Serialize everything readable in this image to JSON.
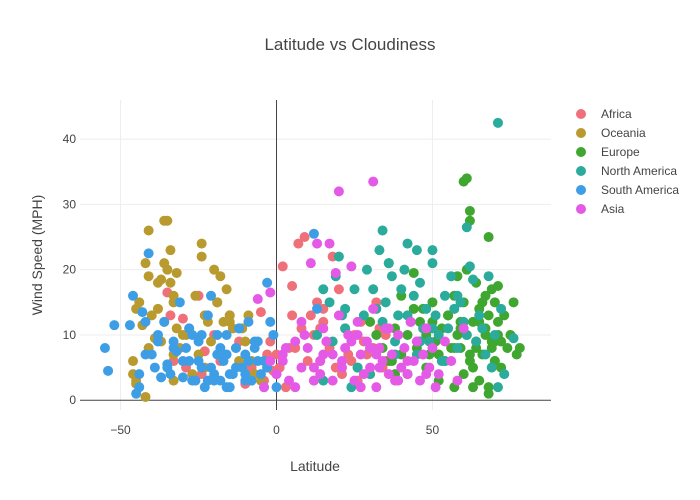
{
  "colors": {
    "africa": "#f0707a",
    "oceania": "#b89a2e",
    "europe": "#3fa630",
    "north_america": "#2aab9c",
    "south_america": "#3d9ee6",
    "asia": "#e45ae6",
    "grid": "#eeeeee",
    "zero_line": "#444444",
    "axis_line": "#444444"
  },
  "chart_data": {
    "type": "scatter",
    "title": "Latitude vs Cloudiness",
    "xlabel": "Latitude",
    "ylabel": "Wind Speed (MPH)",
    "xlim": [
      -63,
      88
    ],
    "ylim": [
      -1.5,
      46
    ],
    "x_ticks": [
      -50,
      0,
      50
    ],
    "y_ticks": [
      0,
      10,
      20,
      30,
      40
    ],
    "grid": true,
    "legend_position": "top-right",
    "series": [
      {
        "name": "Africa",
        "color": "#f0707a",
        "x": [
          -35,
          -34,
          -33,
          -30,
          -29,
          -26,
          -25,
          -24,
          -23,
          -22,
          -20,
          -18,
          -15,
          -12,
          -10,
          -8,
          -5,
          -4,
          -3,
          -2,
          -1,
          0,
          1,
          2,
          3,
          4,
          5,
          5,
          6,
          7,
          8,
          9,
          10,
          11,
          12,
          12,
          13,
          14,
          14,
          15,
          15,
          16,
          17,
          18,
          19,
          20,
          21,
          22,
          23,
          24,
          25,
          26,
          27,
          28,
          29,
          30,
          31,
          32,
          33,
          34,
          35,
          35
        ],
        "y": [
          16.5,
          13,
          6,
          12.5,
          5,
          3.5,
          16,
          4,
          7.5,
          3,
          10,
          6,
          13,
          9,
          2.5,
          5,
          13.5,
          3,
          7,
          9,
          4.5,
          7,
          5,
          20.5,
          2,
          8,
          13,
          17.5,
          8,
          24,
          11,
          25,
          6,
          13,
          3,
          10,
          15,
          11,
          6,
          12,
          14,
          9,
          8,
          22,
          5,
          17,
          4,
          11,
          7,
          6,
          10,
          3,
          12,
          9,
          7,
          4,
          8,
          15,
          11,
          5,
          10,
          6
        ]
      },
      {
        "name": "Oceania",
        "color": "#b89a2e",
        "x": [
          -46,
          -46,
          -45,
          -45,
          -44,
          -43,
          -42,
          -42,
          -41,
          -41,
          -40,
          -39,
          -38,
          -37,
          -36,
          -36,
          -35,
          -35,
          -34,
          -34,
          -33,
          -33,
          -33,
          -32,
          -32,
          -31,
          -30,
          -28,
          -27,
          -26,
          -25,
          -24,
          -24,
          -23,
          -22,
          -21,
          -20,
          -19,
          -18,
          -17,
          -16,
          -15,
          -14,
          -13,
          -12,
          -10,
          -9,
          -8,
          -7,
          -5,
          -3,
          -38,
          -36,
          -33,
          -29,
          -23,
          -19,
          -15,
          -11,
          -45,
          -41,
          -37
        ],
        "y": [
          6,
          4,
          2.5,
          3,
          15,
          11.5,
          21,
          0.5,
          19,
          26,
          13,
          9.5,
          14,
          18.5,
          12,
          27.5,
          27.5,
          20,
          18,
          23,
          16,
          7,
          3,
          19.5,
          11,
          8,
          10,
          11,
          4,
          16,
          7,
          24,
          22,
          5,
          12,
          9,
          20,
          15,
          19,
          12,
          17,
          13,
          11,
          8,
          6,
          9,
          13,
          6,
          4,
          3,
          5,
          18,
          21,
          15,
          10,
          13,
          15,
          12,
          11,
          14,
          8,
          9
        ]
      },
      {
        "name": "Europe",
        "color": "#3fa630",
        "x": [
          36,
          37,
          38,
          40,
          42,
          44,
          45,
          46,
          47,
          48,
          49,
          50,
          51,
          52,
          53,
          54,
          55,
          56,
          57,
          57,
          58,
          58,
          59,
          59,
          60,
          60,
          61,
          61,
          62,
          62,
          62,
          63,
          63,
          64,
          64,
          65,
          65,
          66,
          66,
          67,
          67,
          68,
          68,
          69,
          69,
          70,
          70,
          71,
          71,
          72,
          72,
          73,
          74,
          75,
          76,
          77,
          78,
          60,
          61,
          62,
          63,
          64,
          65,
          66,
          67,
          68,
          69,
          70,
          71,
          55,
          57,
          59,
          52,
          50,
          48,
          46,
          44,
          42,
          40,
          38,
          36,
          34,
          32,
          30,
          68,
          70
        ],
        "y": [
          21,
          6,
          4,
          16,
          4,
          19.5,
          8,
          12,
          14,
          10,
          7,
          15,
          9,
          3,
          11,
          6,
          13,
          8,
          16,
          2,
          19,
          10,
          12,
          8,
          15,
          33.5,
          34,
          20,
          29,
          27.5,
          7,
          12,
          5,
          18,
          9,
          14,
          3,
          11,
          7,
          16,
          10,
          25,
          13,
          8,
          17,
          6,
          15,
          12,
          17.5,
          9,
          5,
          13,
          8,
          10,
          15,
          7,
          8,
          4,
          10,
          6,
          2,
          8,
          12,
          15,
          11,
          1,
          9,
          6,
          10,
          13,
          8,
          11,
          7,
          12,
          5,
          9,
          14,
          10,
          7,
          11,
          6,
          8,
          10,
          12,
          2,
          9
        ]
      },
      {
        "name": "North America",
        "color": "#2aab9c",
        "x": [
          13,
          15,
          17,
          19,
          20,
          21,
          22,
          24,
          25,
          26,
          28,
          29,
          30,
          31,
          32,
          33,
          34,
          35,
          36,
          37,
          38,
          39,
          40,
          41,
          42,
          43,
          44,
          45,
          45,
          46,
          47,
          48,
          49,
          50,
          50,
          51,
          52,
          53,
          54,
          55,
          56,
          57,
          58,
          59,
          60,
          61,
          62,
          63,
          64,
          65,
          66,
          67,
          68,
          69,
          70,
          71,
          72,
          73,
          15,
          18,
          22,
          26,
          30,
          34,
          38,
          42,
          46,
          50,
          54,
          58,
          61,
          71,
          76
        ],
        "y": [
          10,
          17,
          15,
          19,
          22,
          13,
          11,
          2,
          17,
          5,
          13,
          20,
          4,
          17,
          14,
          23,
          26,
          15,
          21,
          19,
          9,
          13,
          17,
          20,
          24,
          12,
          16,
          23,
          7,
          18,
          11,
          14,
          9,
          23,
          21,
          13,
          10,
          6,
          16,
          11,
          19,
          14,
          8,
          15,
          12,
          26.5,
          20.5,
          18.5,
          9,
          13,
          11,
          7,
          19,
          5,
          10,
          42.5,
          14,
          4,
          3,
          9,
          14,
          5,
          8,
          12,
          7,
          13,
          9,
          11,
          6,
          16,
          10,
          2,
          9.5
        ]
      },
      {
        "name": "South America",
        "color": "#3d9ee6",
        "x": [
          -55,
          -54,
          -52,
          -47,
          -46,
          -45,
          -44,
          -43,
          -42,
          -41,
          -40,
          -39,
          -38,
          -37,
          -36,
          -35,
          -34,
          -33,
          -32,
          -31,
          -30,
          -29,
          -28,
          -27,
          -26,
          -25,
          -24,
          -23,
          -22,
          -21,
          -20,
          -19,
          -18,
          -17,
          -16,
          -15,
          -14,
          -13,
          -12,
          -11,
          -10,
          -9,
          -8,
          -7,
          -6,
          -5,
          -4,
          -3,
          -2,
          -1,
          0,
          13,
          12,
          -30,
          -27,
          -24,
          -21,
          -18,
          -15,
          -12,
          -9,
          -6,
          -3,
          -20,
          -16,
          -10,
          -44,
          -42,
          -38,
          -35,
          -33,
          -28,
          -25,
          -22,
          -19,
          -16,
          -13,
          -10,
          -7,
          -4
        ],
        "y": [
          8,
          4.5,
          11.5,
          11.5,
          16,
          1,
          4,
          13.5,
          12,
          22.5,
          7,
          5,
          10,
          3.5,
          12,
          5.5,
          4,
          9,
          7.5,
          15,
          3.5,
          8,
          6,
          10,
          3,
          9,
          5,
          2,
          13,
          16,
          4,
          7,
          3,
          6,
          10,
          2,
          4,
          8,
          11,
          5,
          7,
          12,
          3,
          9,
          6,
          4,
          2,
          18,
          12,
          10,
          2,
          14,
          25.5,
          6,
          3,
          10,
          5,
          8,
          4,
          11,
          6,
          9,
          5,
          3,
          7,
          4,
          2,
          7,
          9,
          5,
          8,
          11,
          6,
          3,
          10,
          2,
          5,
          3,
          8,
          6
        ]
      },
      {
        "name": "Asia",
        "color": "#e45ae6",
        "x": [
          -2,
          0,
          2,
          4,
          6,
          8,
          10,
          11,
          12,
          13,
          14,
          15,
          16,
          17,
          18,
          19,
          20,
          21,
          22,
          23,
          24,
          25,
          26,
          27,
          28,
          29,
          30,
          31,
          32,
          33,
          34,
          35,
          36,
          37,
          38,
          39,
          40,
          41,
          42,
          43,
          44,
          45,
          46,
          47,
          48,
          49,
          50,
          52,
          54,
          56,
          58,
          60,
          20,
          31,
          -4,
          -2,
          0,
          3,
          6,
          9,
          12,
          15,
          18,
          21,
          24,
          27,
          30,
          33,
          36,
          39,
          42,
          45,
          48,
          51,
          -6,
          2,
          8,
          14,
          26,
          32
        ],
        "y": [
          16.5,
          4,
          7,
          3,
          9,
          5,
          8,
          21,
          3,
          24,
          6,
          11,
          9,
          24,
          7,
          19.5,
          32,
          5,
          8,
          10,
          20.5,
          3,
          12,
          7,
          4,
          9,
          5,
          14,
          2,
          8,
          6,
          11,
          4,
          7,
          3,
          10,
          5,
          8,
          4,
          12,
          6,
          9,
          3,
          7,
          11,
          5,
          8,
          4,
          9,
          6,
          3,
          11,
          13,
          33.5,
          2,
          6,
          4,
          8,
          2,
          10,
          5,
          7,
          3,
          6,
          9,
          2,
          8,
          5,
          11,
          3,
          6,
          9,
          4,
          2,
          15.5,
          6,
          12,
          4,
          10,
          7
        ]
      }
    ]
  }
}
